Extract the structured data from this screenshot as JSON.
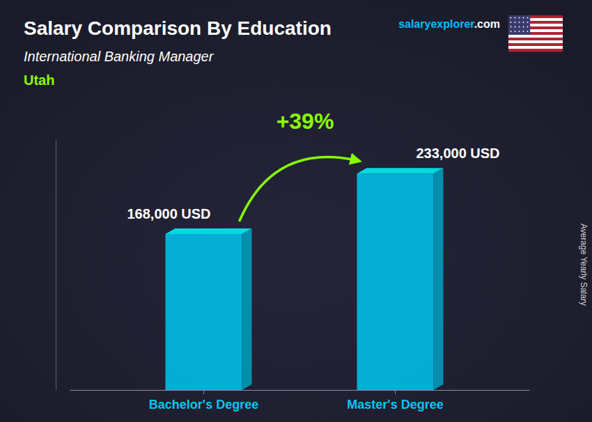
{
  "chart_data": {
    "type": "bar",
    "title": "Salary Comparison By Education",
    "subtitle": "International Banking Manager",
    "annotations": [
      {
        "text": "Utah",
        "color": "#88FF00"
      },
      {
        "text": "+39%",
        "color": "#88FF00"
      },
      {
        "text": "salary",
        "color": "#00BFFF"
      },
      {
        "text": "explorer",
        "color": "#00BFFF"
      },
      {
        "text": ".com",
        "color": "#FFFFFF"
      }
    ],
    "ylabel": "Average Yearly Salary",
    "categories": [
      "Bachelor's Degree",
      "Master's Degree"
    ],
    "values": [
      168000,
      233000
    ],
    "value_labels": [
      "168,000 USD",
      "233,000 USD"
    ],
    "color": "#00C8F0",
    "ylim": [
      0,
      270000
    ],
    "data_labels": true,
    "tick_labels": "x",
    "grid": false
  }
}
